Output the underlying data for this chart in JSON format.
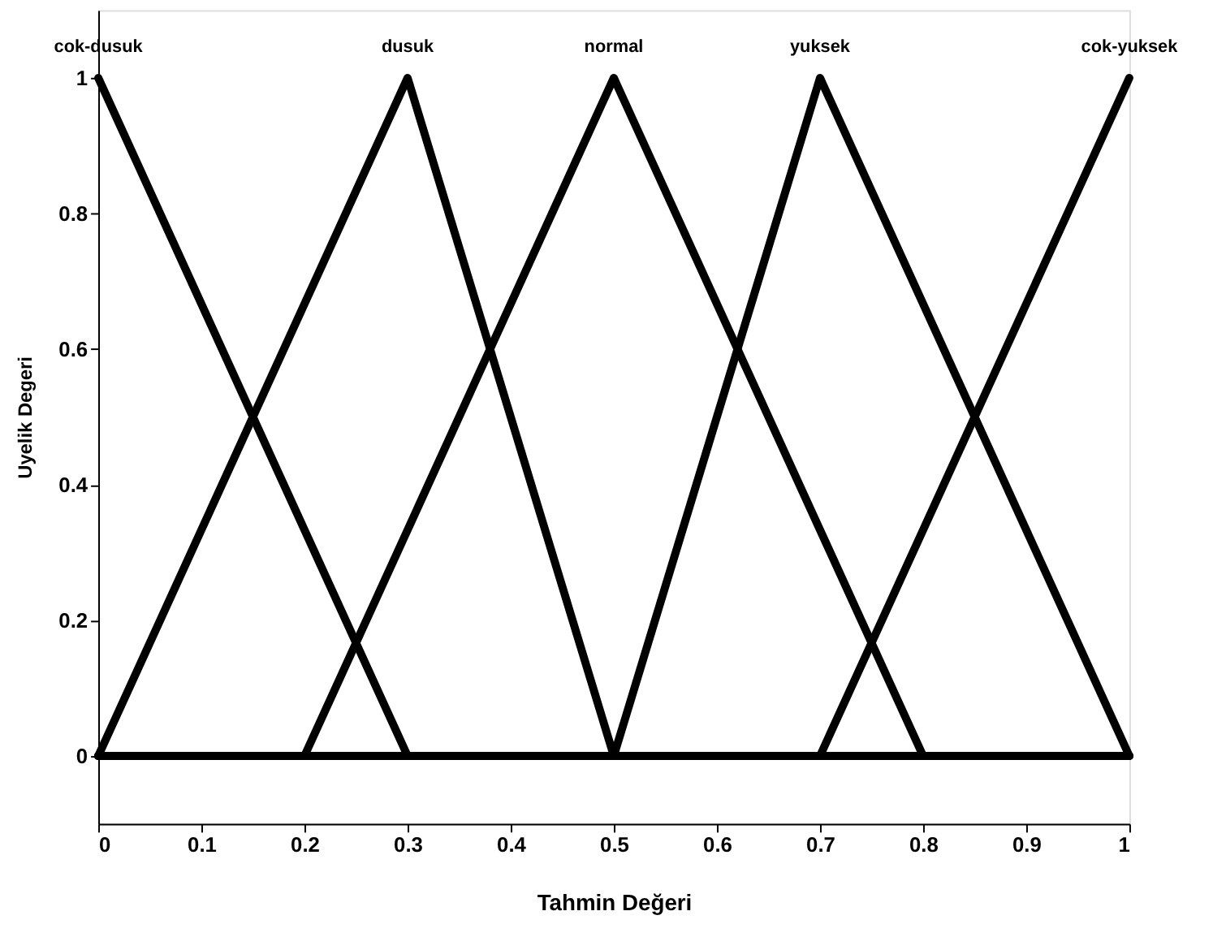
{
  "chart_data": {
    "type": "line",
    "xlabel": "Tahmin Değeri",
    "ylabel": "Uyelik Degeri",
    "series": [
      {
        "name": "cok-dusuk",
        "color": "#000000",
        "x": [
          0,
          0.3,
          1
        ],
        "values": [
          1,
          0,
          0
        ]
      },
      {
        "name": "dusuk",
        "color": "#000000",
        "x": [
          0,
          0.3,
          0.5,
          1
        ],
        "values": [
          0,
          1,
          0,
          0
        ]
      },
      {
        "name": "normal",
        "color": "#000000",
        "x": [
          0,
          0.2,
          0.5,
          0.8,
          1
        ],
        "values": [
          0,
          0,
          1,
          0,
          0
        ]
      },
      {
        "name": "yuksek",
        "color": "#000000",
        "x": [
          0,
          0.5,
          0.7,
          1
        ],
        "values": [
          0,
          0,
          1,
          0
        ]
      },
      {
        "name": "cok-yuksek",
        "color": "#000000",
        "x": [
          0,
          0.7,
          1
        ],
        "values": [
          0,
          0,
          1
        ]
      }
    ],
    "xlim": [
      0,
      1
    ],
    "xticks": [
      0,
      0.1,
      0.2,
      0.3,
      0.4,
      0.5,
      0.6,
      0.7,
      0.8,
      0.9,
      1
    ],
    "ylim": [
      -0.1,
      1.1
    ],
    "yticks": [
      0,
      0.2,
      0.4,
      0.6,
      0.8,
      1
    ],
    "grid": false,
    "marker": "none",
    "line_style": "solid"
  }
}
